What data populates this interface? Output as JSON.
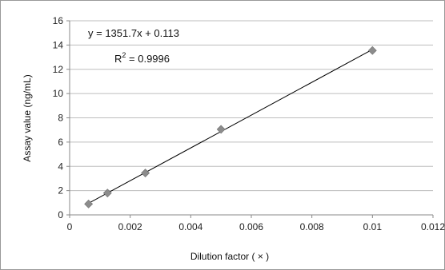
{
  "chart_data": {
    "type": "scatter",
    "x": [
      0.000625,
      0.00125,
      0.0025,
      0.005,
      0.01
    ],
    "y": [
      0.9,
      1.8,
      3.45,
      7.05,
      13.55
    ],
    "xlabel": "Dilution factor ( × )",
    "ylabel": "Assay value (ng/mL)",
    "xlim": [
      0,
      0.012
    ],
    "ylim": [
      0,
      16
    ],
    "x_ticks": [
      0,
      0.002,
      0.004,
      0.006,
      0.008,
      0.01,
      0.012
    ],
    "x_tick_labels": [
      "0",
      "0.002",
      "0.004",
      "0.006",
      "0.008",
      "0.01",
      "0.012"
    ],
    "y_ticks": [
      0,
      2,
      4,
      6,
      8,
      10,
      12,
      14,
      16
    ],
    "y_tick_labels": [
      "0",
      "2",
      "4",
      "6",
      "8",
      "10",
      "12",
      "14",
      "16"
    ],
    "grid": "horizontal",
    "trendline": {
      "slope": 1351.7,
      "intercept": 0.113,
      "x_range": [
        0.000625,
        0.01
      ],
      "equation_label": "y = 1351.7x + 0.113",
      "r2_prefix": "R",
      "r2_sup": "2",
      "r2_value": " = 0.9996"
    },
    "colors": {
      "marker": "#8c8c8c",
      "marker_stroke": "#6f6f6f",
      "line": "#000000",
      "grid": "#bdbdbd",
      "axis": "#888888",
      "border": "#999999"
    }
  }
}
